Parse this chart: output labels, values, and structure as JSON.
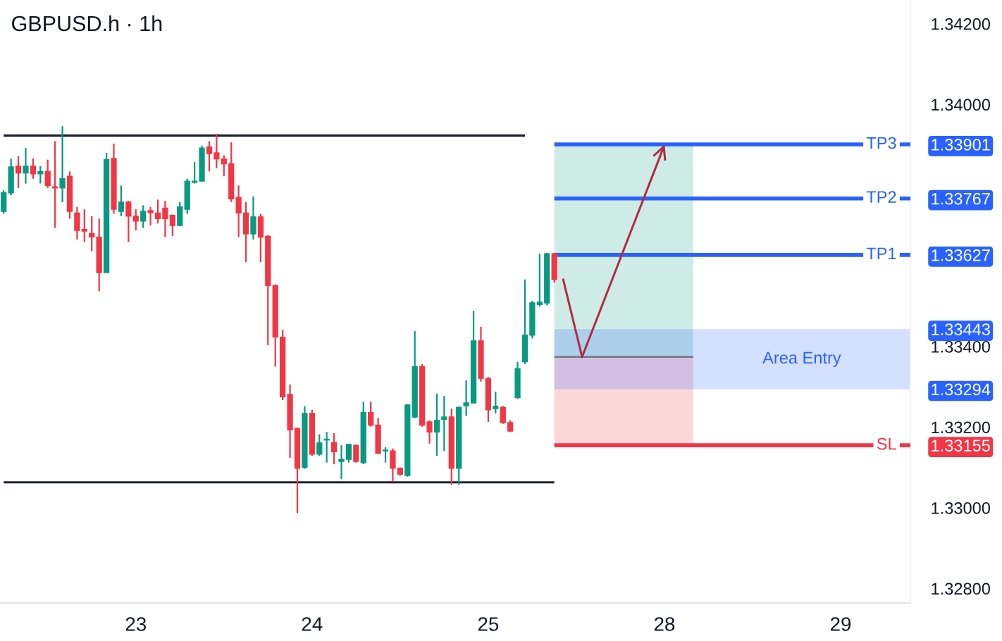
{
  "chart_data": {
    "type": "candlestick",
    "title": "GBPUSD.h · 1h",
    "categories": [
      null,
      null,
      null,
      null,
      null,
      null,
      null,
      null,
      null,
      null,
      null,
      null,
      null,
      null,
      null,
      null,
      null,
      null,
      "23",
      null,
      null,
      null,
      null,
      null,
      null,
      null,
      null,
      null,
      null,
      null,
      null,
      null,
      null,
      null,
      null,
      null,
      null,
      null,
      null,
      null,
      null,
      null,
      "24",
      null,
      null,
      null,
      null,
      null,
      null,
      null,
      null,
      null,
      null,
      null,
      null,
      null,
      null,
      null,
      null,
      null,
      null,
      null,
      null,
      null,
      null,
      null,
      "25",
      null,
      null,
      null,
      null,
      null,
      null,
      null,
      null,
      null,
      null,
      null,
      null,
      null,
      null,
      null,
      null,
      null,
      null,
      null,
      null,
      null,
      null,
      null,
      "28",
      null,
      null,
      null,
      null,
      null,
      null,
      null,
      null,
      null,
      null,
      null,
      null,
      null,
      null,
      null,
      null,
      null,
      null,
      null,
      null,
      null,
      null,
      null,
      "29",
      null,
      null,
      null,
      null,
      null,
      null,
      null,
      null,
      null
    ],
    "ohlc": [
      [
        1.33735,
        1.33787,
        1.33729,
        1.33781
      ],
      [
        1.33781,
        1.33866,
        1.33775,
        1.33845
      ],
      [
        1.33847,
        1.33872,
        1.33793,
        1.3383
      ],
      [
        1.3383,
        1.33892,
        1.33804,
        1.33847
      ],
      [
        1.33847,
        1.33866,
        1.33816,
        1.33828
      ],
      [
        1.33828,
        1.33847,
        1.33804,
        1.33834
      ],
      [
        1.33834,
        1.33863,
        1.33793,
        1.33799
      ],
      [
        1.33796,
        1.33909,
        1.33694,
        1.33793
      ],
      [
        1.33793,
        1.33946,
        1.33758,
        1.33816
      ],
      [
        1.33822,
        1.33834,
        1.33717,
        1.33735
      ],
      [
        1.33731,
        1.33746,
        1.33665,
        1.33688
      ],
      [
        1.3369,
        1.3374,
        1.33659,
        1.33686
      ],
      [
        1.3368,
        1.33723,
        1.33636,
        1.33671
      ],
      [
        1.33671,
        1.33717,
        1.33537,
        1.33583
      ],
      [
        1.33583,
        1.3388,
        1.33583,
        1.33863
      ],
      [
        1.33866,
        1.33903,
        1.33729,
        1.3374
      ],
      [
        1.33735,
        1.33799,
        1.33723,
        1.33758
      ],
      [
        1.33758,
        1.33761,
        1.33659,
        1.33723
      ],
      [
        1.33723,
        1.3374,
        1.33688,
        1.33711
      ],
      [
        1.33711,
        1.3375,
        1.33694,
        1.33735
      ],
      [
        1.33737,
        1.33746,
        1.337,
        1.33732
      ],
      [
        1.33731,
        1.33764,
        1.33705,
        1.33717
      ],
      [
        1.33743,
        1.33761,
        1.33671,
        1.33717
      ],
      [
        1.33725,
        1.33727,
        1.33674,
        1.337
      ],
      [
        1.337,
        1.33758,
        1.33698,
        1.33746
      ],
      [
        1.3374,
        1.33816,
        1.33729,
        1.3381
      ],
      [
        1.33807,
        1.33857,
        1.33804,
        1.3381
      ],
      [
        1.3381,
        1.33898,
        1.33808,
        1.33892
      ],
      [
        1.33895,
        1.33909,
        1.33834,
        1.33878
      ],
      [
        1.3388,
        1.33927,
        1.33842,
        1.33865
      ],
      [
        1.33865,
        1.33874,
        1.33822,
        1.33853
      ],
      [
        1.33853,
        1.33906,
        1.33758,
        1.33766
      ],
      [
        1.33769,
        1.33799,
        1.33671,
        1.33731
      ],
      [
        1.33731,
        1.33758,
        1.33609,
        1.33679
      ],
      [
        1.33679,
        1.33772,
        1.33665,
        1.33721
      ],
      [
        1.33721,
        1.33729,
        1.33609,
        1.33671
      ],
      [
        1.33673,
        1.33676,
        1.33403,
        1.33551
      ],
      [
        1.33551,
        1.33554,
        1.3335,
        1.33423
      ],
      [
        1.33423,
        1.33441,
        1.33267,
        1.33275
      ],
      [
        1.33281,
        1.33306,
        1.33124,
        1.33193
      ],
      [
        1.33197,
        1.33199,
        1.32987,
        1.33098
      ],
      [
        1.331,
        1.33252,
        1.33097,
        1.33234
      ],
      [
        1.33234,
        1.33243,
        1.33129,
        1.33133
      ],
      [
        1.33133,
        1.33182,
        1.33129,
        1.33161
      ],
      [
        1.33168,
        1.33188,
        1.33112,
        1.3317
      ],
      [
        1.33162,
        1.33185,
        1.33108,
        1.33139
      ],
      [
        1.33115,
        1.33155,
        1.33071,
        1.3312
      ],
      [
        1.3312,
        1.33159,
        1.33112,
        1.33157
      ],
      [
        1.33155,
        1.33157,
        1.33112,
        1.33115
      ],
      [
        1.33112,
        1.33263,
        1.33108,
        1.33236
      ],
      [
        1.33236,
        1.33263,
        1.33201,
        1.33205
      ],
      [
        1.33205,
        1.33223,
        1.33133,
        1.33135
      ],
      [
        1.33141,
        1.3315,
        1.33112,
        1.33143
      ],
      [
        1.33141,
        1.33147,
        1.33065,
        1.33098
      ],
      [
        1.33098,
        1.331,
        1.3308,
        1.33083
      ],
      [
        1.3308,
        1.33257,
        1.33077,
        1.33255
      ],
      [
        1.33225,
        1.33438,
        1.33222,
        1.3335
      ],
      [
        1.3335,
        1.33356,
        1.33201,
        1.33205
      ],
      [
        1.33213,
        1.33217,
        1.33159,
        1.33188
      ],
      [
        1.33188,
        1.33283,
        1.33129,
        1.33217
      ],
      [
        1.33219,
        1.33277,
        1.33141,
        1.33225
      ],
      [
        1.33225,
        1.33246,
        1.33057,
        1.33098
      ],
      [
        1.33098,
        1.33251,
        1.33057,
        1.33249
      ],
      [
        1.33253,
        1.33316,
        1.33228,
        1.3326
      ],
      [
        1.3326,
        1.33488,
        1.33258,
        1.33414
      ],
      [
        1.33414,
        1.33449,
        1.33313,
        1.33321
      ],
      [
        1.33321,
        1.33324,
        1.33213,
        1.33243
      ],
      [
        1.33246,
        1.33288,
        1.33234,
        1.33252
      ],
      [
        1.33249,
        1.33252,
        1.33208,
        1.33211
      ],
      [
        1.33211,
        1.33217,
        1.33188,
        1.3319
      ],
      [
        1.33273,
        1.33362,
        1.3327,
        1.33345
      ],
      [
        1.33362,
        1.33566,
        1.33356,
        1.33428
      ],
      [
        1.33428,
        1.33513,
        1.3342,
        1.33508
      ],
      [
        1.33504,
        1.3363,
        1.33499,
        1.3351
      ],
      [
        1.33508,
        1.33632,
        1.33502,
        1.3363
      ],
      [
        1.3363,
        1.33632,
        1.33558,
        1.33566
      ],
      null,
      null,
      null,
      null,
      null,
      null,
      null,
      null,
      null,
      null,
      null,
      null,
      null,
      null,
      null,
      null,
      null,
      null,
      null,
      null,
      null,
      null,
      null,
      null,
      null,
      null,
      null,
      null,
      null,
      null,
      null,
      null,
      null,
      null,
      null,
      null,
      null,
      null,
      null,
      null,
      null,
      null,
      null,
      null,
      null,
      null,
      null,
      null
    ],
    "colors": [
      "#089981",
      "#089981",
      "#f23645",
      "#089981",
      "#f23645",
      "#089981",
      "#f23645",
      "#f23645",
      "#089981",
      "#f23645",
      "#f23645",
      "#f23645",
      "#f23645",
      "#f23645",
      "#089981",
      "#f23645",
      "#089981",
      "#f23645",
      "#f23645",
      "#089981",
      "#f23645",
      "#f23645",
      "#f23645",
      "#f23645",
      "#089981",
      "#089981",
      "#089981",
      "#089981",
      "#f23645",
      "#f23645",
      "#f23645",
      "#f23645",
      "#f23645",
      "#f23645",
      "#089981",
      "#f23645",
      "#f23645",
      "#f23645",
      "#f23645",
      "#f23645",
      "#f23645",
      "#089981",
      "#f23645",
      "#089981",
      "#089981",
      "#f23645",
      "#089981",
      "#089981",
      "#f23645",
      "#089981",
      "#f23645",
      "#f23645",
      "#089981",
      "#f23645",
      "#f23645",
      "#089981",
      "#089981",
      "#f23645",
      "#f23645",
      "#089981",
      "#089981",
      "#f23645",
      "#089981",
      "#089981",
      "#089981",
      "#f23645",
      "#f23645",
      "#089981",
      "#f23645",
      "#f23645",
      "#089981",
      "#089981",
      "#089981",
      "#089981",
      "#089981",
      "#f23645",
      null,
      null,
      null,
      null,
      null,
      null,
      null,
      null,
      null,
      null,
      null,
      null,
      null,
      null,
      null,
      null,
      null,
      null,
      null,
      null,
      null,
      null,
      null,
      null,
      null,
      null,
      null,
      null,
      null,
      null,
      null,
      null,
      null,
      null,
      null,
      null,
      null,
      null,
      null,
      null,
      null,
      null,
      null,
      null,
      null,
      null,
      null,
      null
    ],
    "series": [
      {
        "type": "line",
        "color": "#1e222d",
        "values": [
          1.33923,
          1.33923,
          1.33923,
          1.33923,
          1.33923,
          1.33923,
          1.33923,
          1.33923,
          1.33923,
          1.33923,
          1.33923,
          1.33923,
          1.33923,
          1.33923,
          1.33923,
          1.33923,
          1.33923,
          1.33923,
          1.33923,
          1.33923,
          1.33923,
          1.33923,
          1.33923,
          1.33923,
          1.33923,
          1.33923,
          1.33923,
          1.33923,
          1.33923,
          1.33923,
          1.33923,
          1.33923,
          1.33923,
          1.33923,
          1.33923,
          1.33923,
          1.33923,
          1.33923,
          1.33923,
          1.33923,
          1.33923,
          1.33923,
          1.33923,
          1.33923,
          1.33923,
          1.33923,
          1.33923,
          1.33923,
          1.33923,
          1.33923,
          1.33923,
          1.33923,
          1.33923,
          1.33923,
          1.33923,
          1.33923,
          1.33923,
          1.33923,
          1.33923,
          1.33923,
          1.33923,
          1.33923,
          1.33923,
          1.33923,
          1.33923,
          1.33923,
          1.33923,
          1.33923,
          1.33923,
          1.33923,
          1.33923,
          1.33923,
          null,
          null,
          null,
          null,
          null,
          null,
          null,
          null,
          null,
          null,
          null,
          null,
          null,
          null,
          null,
          null,
          null,
          null,
          null,
          null,
          null,
          null,
          null,
          null,
          null,
          null,
          null,
          null,
          null,
          null,
          null,
          null,
          null,
          null,
          null,
          null,
          null,
          null,
          null,
          null,
          null,
          null,
          null,
          null,
          null,
          null,
          null,
          null,
          null,
          null,
          null,
          null
        ]
      },
      {
        "type": "line",
        "color": "#1e222d",
        "values": [
          1.33063,
          1.33063,
          1.33063,
          1.33063,
          1.33063,
          1.33063,
          1.33063,
          1.33063,
          1.33063,
          1.33063,
          1.33063,
          1.33063,
          1.33063,
          1.33063,
          1.33063,
          1.33063,
          1.33063,
          1.33063,
          1.33063,
          1.33063,
          1.33063,
          1.33063,
          1.33063,
          1.33063,
          1.33063,
          1.33063,
          1.33063,
          1.33063,
          1.33063,
          1.33063,
          1.33063,
          1.33063,
          1.33063,
          1.33063,
          1.33063,
          1.33063,
          1.33063,
          1.33063,
          1.33063,
          1.33063,
          1.33063,
          1.33063,
          1.33063,
          1.33063,
          1.33063,
          1.33063,
          1.33063,
          1.33063,
          1.33063,
          1.33063,
          1.33063,
          1.33063,
          1.33063,
          1.33063,
          1.33063,
          1.33063,
          1.33063,
          1.33063,
          1.33063,
          1.33063,
          1.33063,
          1.33063,
          1.33063,
          1.33063,
          1.33063,
          1.33063,
          1.33063,
          1.33063,
          1.33063,
          1.33063,
          1.33063,
          1.33063,
          1.33063,
          1.33063,
          1.33063,
          1.33063,
          null,
          null,
          null,
          null,
          null,
          null,
          null,
          null,
          null,
          null,
          null,
          null,
          null,
          null,
          null,
          null,
          null,
          null,
          null,
          null,
          null,
          null,
          null,
          null,
          null,
          null,
          null,
          null,
          null,
          null,
          null,
          null,
          null,
          null,
          null,
          null,
          null,
          null,
          null,
          null,
          null,
          null,
          null,
          null,
          null,
          null,
          null,
          null
        ]
      }
    ],
    "ylim": [
      1.32764,
      1.34259
    ],
    "yticks": [
      {
        "value": 1.342,
        "label": "1.34200"
      },
      {
        "value": 1.34,
        "label": "1.34000"
      },
      {
        "value": 1.33901,
        "label": "1.33901"
      },
      {
        "value": 1.33767,
        "label": "1.33767"
      },
      {
        "value": 1.33627,
        "label": "1.33627"
      },
      {
        "value": 1.33443,
        "label": "1.33443"
      },
      {
        "value": 1.334,
        "label": "1.33400"
      },
      {
        "value": 1.33294,
        "label": "1.33294"
      },
      {
        "value": 1.332,
        "label": "1.33200"
      },
      {
        "value": 1.33155,
        "label": "1.33155"
      },
      {
        "value": 1.33,
        "label": "1.33000"
      },
      {
        "value": 1.328,
        "label": "1.32800"
      }
    ],
    "ref_lines": [
      {
        "axis": "y",
        "value": 1.33901,
        "label": "TP3",
        "color": "#2962ff"
      },
      {
        "axis": "y",
        "value": 1.33767,
        "label": "TP2",
        "color": "#2962ff"
      },
      {
        "axis": "y",
        "value": 1.33627,
        "label": "TP1",
        "color": "#2962ff"
      },
      {
        "axis": "y",
        "value": 1.33155,
        "label": "SL",
        "color": "#f23645"
      },
      {
        "axis": "y",
        "value": 1.33374,
        "label": null,
        "color": "#787b86"
      }
    ],
    "bands": [
      {
        "axis": "y",
        "from": 1.33374,
        "to": 1.33901,
        "color": "#089981"
      },
      {
        "axis": "y",
        "from": 1.33155,
        "to": 1.33374,
        "color": "#f23645"
      },
      {
        "axis": "y",
        "from": 1.33294,
        "to": 1.33443,
        "label": "Area Entry",
        "color": "#2962ff"
      }
    ]
  }
}
